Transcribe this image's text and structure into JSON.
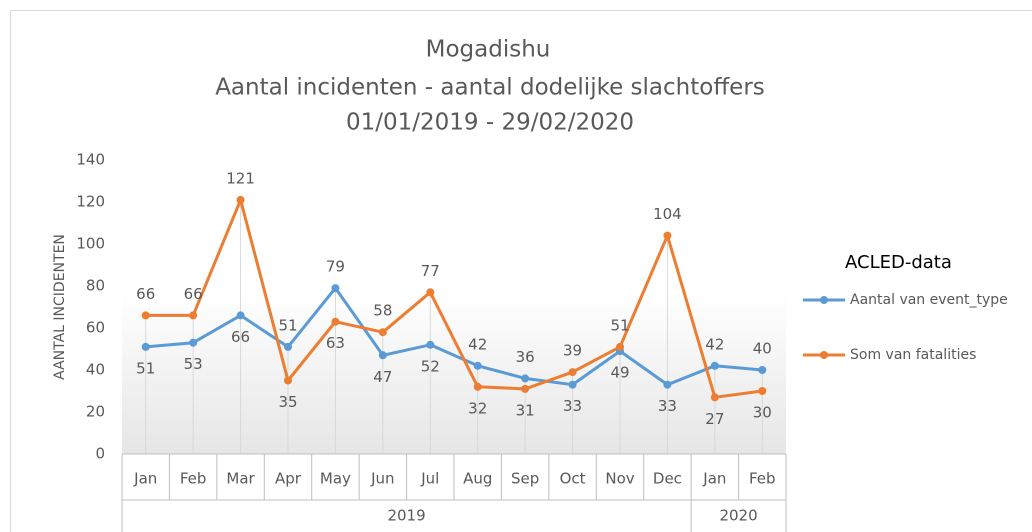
{
  "chart_data": {
    "type": "line",
    "title": [
      "Mogadishu",
      "Aantal incidenten - aantal dodelijke slachtoffers",
      "01/01/2019 - 29/02/2020"
    ],
    "y_label": "AANTAL INCIDENTEN",
    "legend_title": "ACLED-data",
    "legend": "right",
    "category_groups": [
      {
        "name": "2019",
        "categories": [
          "Jan",
          "Feb",
          "Mar",
          "Apr",
          "May",
          "Jun",
          "Jul",
          "Aug",
          "Sep",
          "Oct",
          "Nov",
          "Dec"
        ]
      },
      {
        "name": "2020",
        "categories": [
          "Jan",
          "Feb"
        ]
      }
    ],
    "series": [
      {
        "name": "Aantal van event_type",
        "color": "#5b9bd5",
        "values": [
          51,
          53,
          66,
          51,
          79,
          47,
          52,
          42,
          36,
          33,
          49,
          33,
          42,
          40
        ]
      },
      {
        "name": "Som van fatalities",
        "color": "#ed7d31",
        "values": [
          66,
          66,
          121,
          35,
          63,
          58,
          77,
          32,
          31,
          39,
          51,
          104,
          27,
          30
        ]
      }
    ],
    "ylim": [
      0,
      140
    ],
    "yticks": [
      0,
      20,
      40,
      60,
      80,
      100,
      120,
      140
    ],
    "data_labels": true,
    "drop_lines": true
  }
}
